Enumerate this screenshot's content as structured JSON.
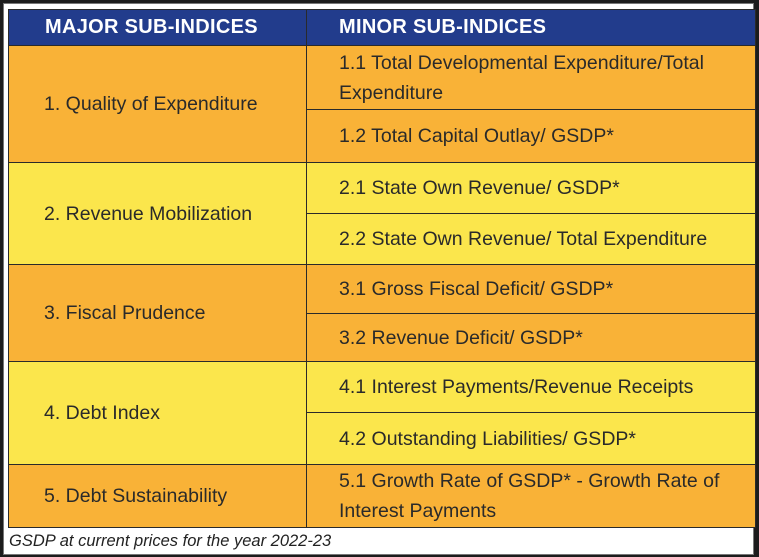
{
  "table": {
    "headers": {
      "major": "MAJOR SUB-INDICES",
      "minor": "MINOR SUB-INDICES"
    },
    "groups": [
      {
        "major": "1. Quality of Expenditure",
        "minors": [
          "1.1 Total Developmental Expenditure/Total Expenditure",
          "1.2 Total Capital Outlay/ GSDP*"
        ]
      },
      {
        "major": "2. Revenue Mobilization",
        "minors": [
          "2.1 State Own Revenue/ GSDP*",
          "2.2 State Own Revenue/ Total Expenditure"
        ]
      },
      {
        "major": "3. Fiscal Prudence",
        "minors": [
          "3.1 Gross Fiscal Deficit/ GSDP*",
          "3.2 Revenue Deficit/ GSDP*"
        ]
      },
      {
        "major": "4. Debt Index",
        "minors": [
          "4.1 Interest Payments/Revenue Receipts",
          "4.2 Outstanding Liabilities/ GSDP*"
        ]
      },
      {
        "major": "5. Debt Sustainability",
        "minors": [
          "5.1 Growth Rate of GSDP* - Growth Rate of Interest Payments"
        ]
      }
    ]
  },
  "footnote": "GSDP at current prices for the year 2022-23",
  "colors": {
    "header_bg": "#223c8c",
    "header_text": "#ffffff",
    "row_orange": "#f9b237",
    "row_yellow": "#fbe64c"
  }
}
